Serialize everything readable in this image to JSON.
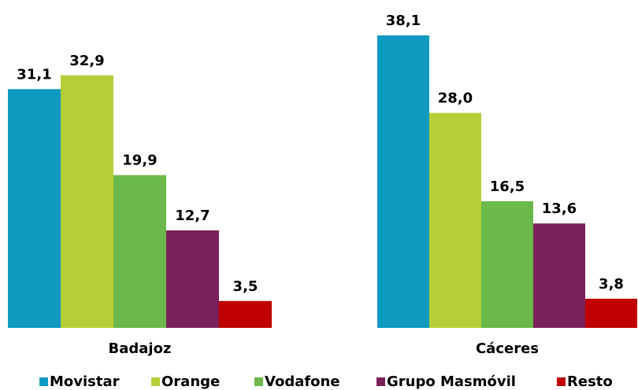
{
  "chart_data": {
    "type": "bar",
    "categories": [
      "Badajoz",
      "Cáceres"
    ],
    "series": [
      {
        "name": "Movistar",
        "color": "#0e9ac1",
        "values": [
          31.1,
          38.1
        ],
        "value_labels": [
          "31,1",
          "38,1"
        ]
      },
      {
        "name": "Orange",
        "color": "#b5cf37",
        "values": [
          32.9,
          28.0
        ],
        "value_labels": [
          "32,9",
          "28,0"
        ]
      },
      {
        "name": "Vodafone",
        "color": "#6ab94a",
        "values": [
          19.9,
          16.5
        ],
        "value_labels": [
          "19,9",
          "16,5"
        ]
      },
      {
        "name": "Grupo Masmóvil",
        "color": "#7b2159",
        "values": [
          12.7,
          13.6
        ],
        "value_labels": [
          "12,7",
          "13,6"
        ]
      },
      {
        "name": "Resto",
        "color": "#c00000",
        "values": [
          3.5,
          3.8
        ],
        "value_labels": [
          "3,5",
          "3,8"
        ]
      }
    ]
  }
}
